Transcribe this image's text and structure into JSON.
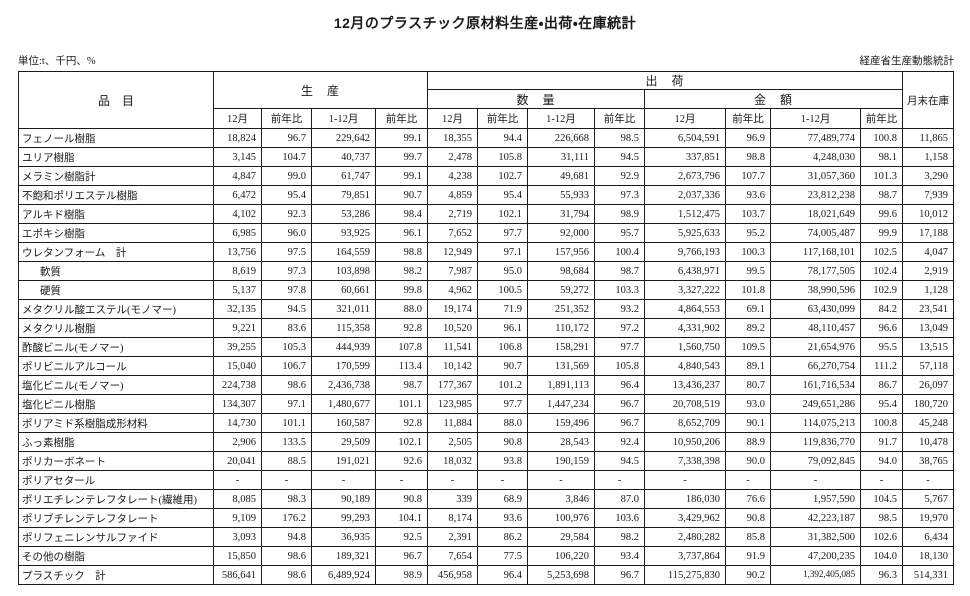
{
  "title": "12月のプラスチック原材料生産・出荷・在庫統計",
  "unit_note": "単位:t、千円、%",
  "source_note": "経産省生産動態統計",
  "table": {
    "header": {
      "item": "品　目",
      "production": "生　産",
      "shipment": "出　荷",
      "quantity": "数　量",
      "amount": "金　額",
      "inventory": "月末在庫",
      "period_labels": [
        "12月",
        "前年比",
        "1-12月",
        "前年比"
      ]
    },
    "rows": [
      {
        "label": "フェノール樹脂",
        "indent": false,
        "values": [
          "18,824",
          "96.7",
          "229,642",
          "99.1",
          "18,355",
          "94.4",
          "226,668",
          "98.5",
          "6,504,591",
          "96.9",
          "77,489,774",
          "100.8",
          "11,865"
        ]
      },
      {
        "label": "ユリア樹脂",
        "indent": false,
        "values": [
          "3,145",
          "104.7",
          "40,737",
          "99.7",
          "2,478",
          "105.8",
          "31,111",
          "94.5",
          "337,851",
          "98.8",
          "4,248,030",
          "98.1",
          "1,158"
        ]
      },
      {
        "label": "メラミン樹脂計",
        "indent": false,
        "values": [
          "4,847",
          "99.0",
          "61,747",
          "99.1",
          "4,238",
          "102.7",
          "49,681",
          "92.9",
          "2,673,796",
          "107.7",
          "31,057,360",
          "101.3",
          "3,290"
        ]
      },
      {
        "label": "不飽和ポリエステル樹脂",
        "indent": false,
        "values": [
          "6,472",
          "95.4",
          "79,851",
          "90.7",
          "4,859",
          "95.4",
          "55,933",
          "97.3",
          "2,037,336",
          "93.6",
          "23,812,238",
          "98.7",
          "7,939"
        ]
      },
      {
        "label": "アルキド樹脂",
        "indent": false,
        "values": [
          "4,102",
          "92.3",
          "53,286",
          "98.4",
          "2,719",
          "102.1",
          "31,794",
          "98.9",
          "1,512,475",
          "103.7",
          "18,021,649",
          "99.6",
          "10,012"
        ]
      },
      {
        "label": "エポキシ樹脂",
        "indent": false,
        "values": [
          "6,985",
          "96.0",
          "93,925",
          "96.1",
          "7,652",
          "97.7",
          "92,000",
          "95.7",
          "5,925,633",
          "95.2",
          "74,005,487",
          "99.9",
          "17,188"
        ]
      },
      {
        "label": "ウレタンフォーム　計",
        "indent": false,
        "values": [
          "13,756",
          "97.5",
          "164,559",
          "98.8",
          "12,949",
          "97.1",
          "157,956",
          "100.4",
          "9,766,193",
          "100.3",
          "117,168,101",
          "102.5",
          "4,047"
        ]
      },
      {
        "label": "軟質",
        "indent": true,
        "values": [
          "8,619",
          "97.3",
          "103,898",
          "98.2",
          "7,987",
          "95.0",
          "98,684",
          "98.7",
          "6,438,971",
          "99.5",
          "78,177,505",
          "102.4",
          "2,919"
        ]
      },
      {
        "label": "硬質",
        "indent": true,
        "values": [
          "5,137",
          "97.8",
          "60,661",
          "99.8",
          "4,962",
          "100.5",
          "59,272",
          "103.3",
          "3,327,222",
          "101.8",
          "38,990,596",
          "102.9",
          "1,128"
        ]
      },
      {
        "label": "メタクリル酸エステル(モノマー)",
        "indent": false,
        "values": [
          "32,135",
          "94.5",
          "321,011",
          "88.0",
          "19,174",
          "71.9",
          "251,352",
          "93.2",
          "4,864,553",
          "69.1",
          "63,430,099",
          "84.2",
          "23,541"
        ]
      },
      {
        "label": "メタクリル樹脂",
        "indent": false,
        "values": [
          "9,221",
          "83.6",
          "115,358",
          "92.8",
          "10,520",
          "96.1",
          "110,172",
          "97.2",
          "4,331,902",
          "89.2",
          "48,110,457",
          "96.6",
          "13,049"
        ]
      },
      {
        "label": "酢酸ビニル(モノマー)",
        "indent": false,
        "values": [
          "39,255",
          "105.3",
          "444,939",
          "107.8",
          "11,541",
          "106.8",
          "158,291",
          "97.7",
          "1,560,750",
          "109.5",
          "21,654,976",
          "95.5",
          "13,515"
        ]
      },
      {
        "label": "ポリビニルアルコール",
        "indent": false,
        "values": [
          "15,040",
          "106.7",
          "170,599",
          "113.4",
          "10,142",
          "90.7",
          "131,569",
          "105.8",
          "4,840,543",
          "89.1",
          "66,270,754",
          "111.2",
          "57,118"
        ]
      },
      {
        "label": "塩化ビニル(モノマー)",
        "indent": false,
        "values": [
          "224,738",
          "98.6",
          "2,436,738",
          "98.7",
          "177,367",
          "101.2",
          "1,891,113",
          "96.4",
          "13,436,237",
          "80.7",
          "161,716,534",
          "86.7",
          "26,097"
        ]
      },
      {
        "label": "塩化ビニル樹脂",
        "indent": false,
        "values": [
          "134,307",
          "97.1",
          "1,480,677",
          "101.1",
          "123,985",
          "97.7",
          "1,447,234",
          "96.7",
          "20,708,519",
          "93.0",
          "249,651,286",
          "95.4",
          "180,720"
        ]
      },
      {
        "label": "ポリアミド系樹脂成形材料",
        "indent": false,
        "values": [
          "14,730",
          "101.1",
          "160,587",
          "92.8",
          "11,884",
          "88.0",
          "159,496",
          "96.7",
          "8,652,709",
          "90.1",
          "114,075,213",
          "100.8",
          "45,248"
        ]
      },
      {
        "label": "ふっ素樹脂",
        "indent": false,
        "values": [
          "2,906",
          "133.5",
          "29,509",
          "102.1",
          "2,505",
          "90.8",
          "28,543",
          "92.4",
          "10,950,206",
          "88.9",
          "119,836,770",
          "91.7",
          "10,478"
        ]
      },
      {
        "label": "ポリカーボネート",
        "indent": false,
        "values": [
          "20,041",
          "88.5",
          "191,021",
          "92.6",
          "18,032",
          "93.8",
          "190,159",
          "94.5",
          "7,338,398",
          "90.0",
          "79,092,845",
          "94.0",
          "38,765"
        ]
      },
      {
        "label": "ポリアセタール",
        "indent": false,
        "values": [
          "-",
          "-",
          "-",
          "-",
          "-",
          "-",
          "-",
          "-",
          "-",
          "-",
          "-",
          "-",
          "-"
        ]
      },
      {
        "label": "ポリエチレンテレフタレート(繊維用)",
        "indent": false,
        "values": [
          "8,085",
          "98.3",
          "90,189",
          "90.8",
          "339",
          "68.9",
          "3,846",
          "87.0",
          "186,030",
          "76.6",
          "1,957,590",
          "104.5",
          "5,767"
        ]
      },
      {
        "label": "ポリブチレンテレフタレート",
        "indent": false,
        "values": [
          "9,109",
          "176.2",
          "99,293",
          "104.1",
          "8,174",
          "93.6",
          "100,976",
          "103.6",
          "3,429,962",
          "90.8",
          "42,223,187",
          "98.5",
          "19,970"
        ]
      },
      {
        "label": "ポリフェニレンサルファイド",
        "indent": false,
        "values": [
          "3,093",
          "94.8",
          "36,935",
          "92.5",
          "2,391",
          "86.2",
          "29,584",
          "98.2",
          "2,480,282",
          "85.8",
          "31,382,500",
          "102.6",
          "6,434"
        ]
      },
      {
        "label": "その他の樹脂",
        "indent": false,
        "values": [
          "15,850",
          "98.6",
          "189,321",
          "96.7",
          "7,654",
          "77.5",
          "106,220",
          "93.4",
          "3,737,864",
          "91.9",
          "47,200,235",
          "104.0",
          "18,130"
        ]
      },
      {
        "label": "プラスチック　計",
        "indent": false,
        "values": [
          "586,641",
          "98.6",
          "6,489,924",
          "98.9",
          "456,958",
          "96.4",
          "5,253,698",
          "96.7",
          "115,275,830",
          "90.2",
          "1,392,405,085",
          "96.3",
          "514,331"
        ]
      }
    ]
  }
}
